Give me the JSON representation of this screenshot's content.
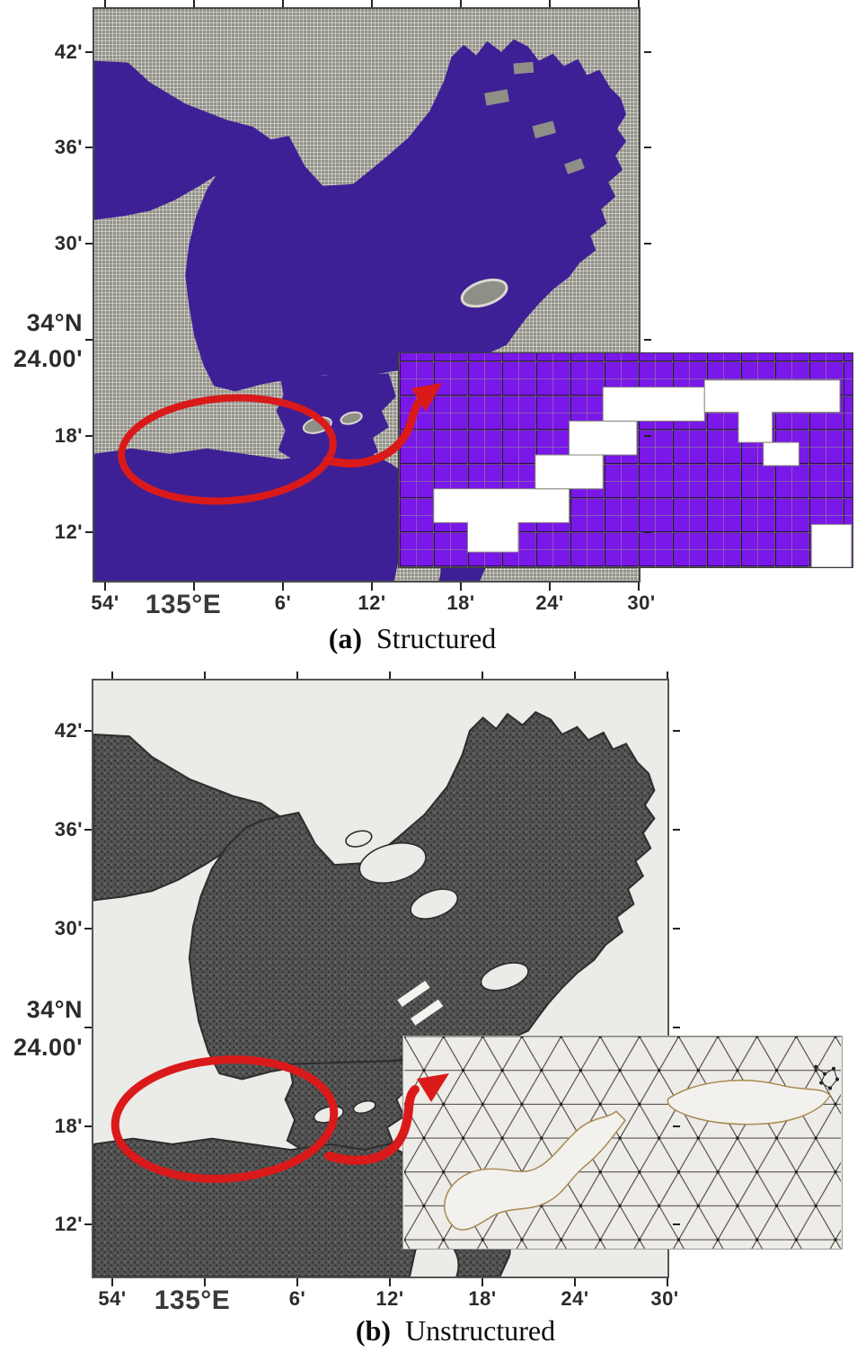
{
  "figure": {
    "annotation_color": "#da1a1a",
    "panels": [
      {
        "label": "(a)",
        "title": "Structured",
        "x_ticks": [
          "54'",
          "135°E",
          "6'",
          "12'",
          "18'",
          "24'",
          "30'"
        ],
        "y_ticks": [
          "42'",
          "36'",
          "30'",
          "34°N",
          "24.00'",
          "18'",
          "12'"
        ],
        "colors": {
          "water": "#3e2096",
          "land_grid": "#92928a",
          "inset_cell": "#7a17e9",
          "inset_land": "#ffffff"
        }
      },
      {
        "label": "(b)",
        "title": "Unstructured",
        "x_ticks": [
          "54'",
          "135°E",
          "6'",
          "12'",
          "18'",
          "24'",
          "30'"
        ],
        "y_ticks": [
          "42'",
          "36'",
          "30'",
          "34°N",
          "24.00'",
          "18'",
          "12'"
        ],
        "colors": {
          "mesh": "#535353",
          "background": "#ebebe8",
          "inset_background": "#edece8",
          "inset_land_outline": "#a8894f"
        }
      }
    ]
  }
}
